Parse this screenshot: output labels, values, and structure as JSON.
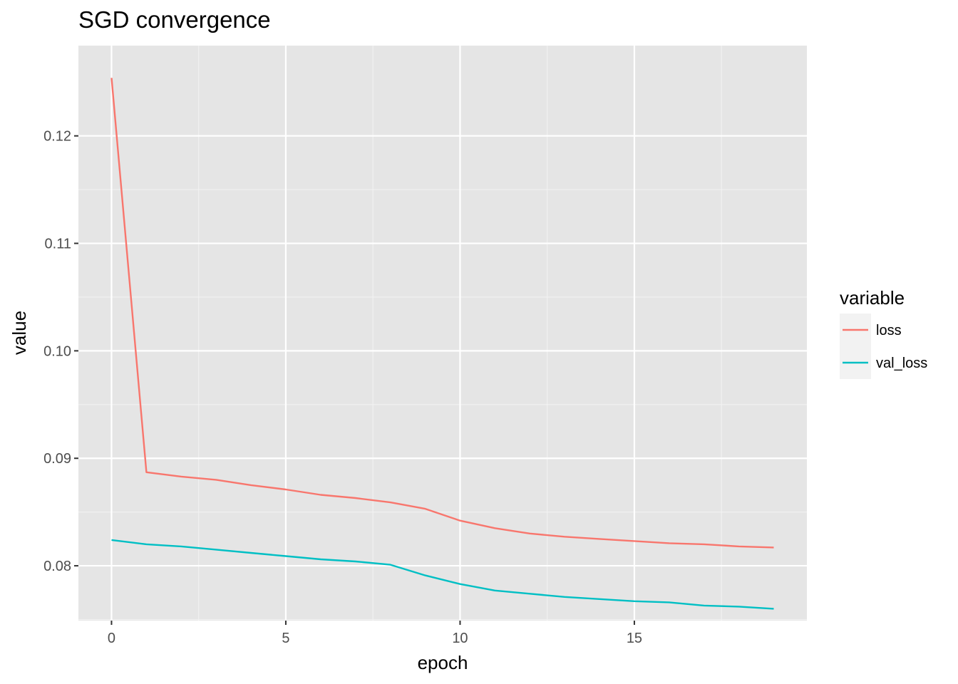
{
  "chart_data": {
    "type": "line",
    "title": "SGD convergence",
    "xlabel": "epoch",
    "ylabel": "value",
    "xlim": [
      -0.95,
      19.95
    ],
    "ylim": [
      0.0749,
      0.1284
    ],
    "x_ticks": [
      "0",
      "5",
      "10",
      "15"
    ],
    "x_tick_values": [
      0,
      5,
      10,
      15
    ],
    "y_ticks": [
      "0.08",
      "0.09",
      "0.10",
      "0.11",
      "0.12"
    ],
    "y_tick_values": [
      0.08,
      0.09,
      0.1,
      0.11,
      0.12
    ],
    "grid": true,
    "legend": {
      "title": "variable",
      "position": "right"
    },
    "x": [
      0,
      1,
      2,
      3,
      4,
      5,
      6,
      7,
      8,
      9,
      10,
      11,
      12,
      13,
      14,
      15,
      16,
      17,
      18,
      19
    ],
    "series": [
      {
        "name": "loss",
        "color": "#f8766d",
        "values": [
          0.1254,
          0.0887,
          0.0883,
          0.088,
          0.0875,
          0.0871,
          0.0866,
          0.0863,
          0.0859,
          0.0853,
          0.0842,
          0.0835,
          0.083,
          0.0827,
          0.0825,
          0.0823,
          0.0821,
          0.082,
          0.0818,
          0.0817
        ]
      },
      {
        "name": "val_loss",
        "color": "#00bfc4",
        "values": [
          0.0824,
          0.082,
          0.0818,
          0.0815,
          0.0812,
          0.0809,
          0.0806,
          0.0804,
          0.0801,
          0.0791,
          0.0783,
          0.0777,
          0.0774,
          0.0771,
          0.0769,
          0.0767,
          0.0766,
          0.0763,
          0.0762,
          0.076
        ]
      }
    ]
  }
}
